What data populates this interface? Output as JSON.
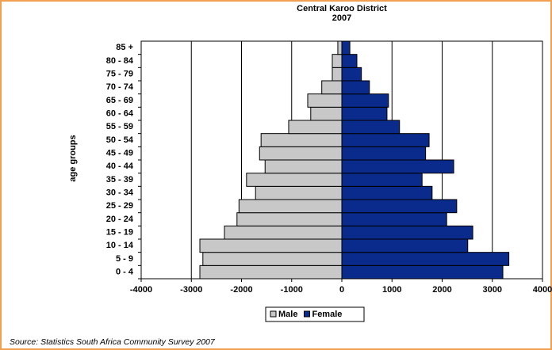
{
  "chart_data": {
    "type": "pyramid",
    "title": "Central Karoo District",
    "subtitle": "2007",
    "ylabel": "age groups",
    "source": "Source: Statistics South Africa Community Survey 2007",
    "categories": [
      "0 - 4",
      "5 - 9",
      "10 - 14",
      "15 - 19",
      "20 - 24",
      "25 - 29",
      "30 - 34",
      "35 - 39",
      "40 - 44",
      "45 - 49",
      "50 - 54",
      "55 - 59",
      "60 - 64",
      "65 - 69",
      "70 - 74",
      "75 - 79",
      "80 - 84",
      "85 +"
    ],
    "series": [
      {
        "name": "Male",
        "color": "#c8c8c8",
        "values": [
          -2830,
          -2770,
          -2830,
          -2340,
          -2090,
          -2050,
          -1720,
          -1900,
          -1530,
          -1640,
          -1610,
          -1060,
          -620,
          -680,
          -400,
          -190,
          -190,
          -80
        ]
      },
      {
        "name": "Female",
        "color": "#0a2a8c",
        "values": [
          3210,
          3330,
          2510,
          2610,
          2090,
          2290,
          1800,
          1600,
          2230,
          1670,
          1740,
          1150,
          900,
          930,
          550,
          390,
          300,
          160
        ]
      }
    ],
    "xlim": [
      -4000,
      4000
    ],
    "xticks": [
      -4000,
      -3000,
      -2000,
      -1000,
      0,
      1000,
      2000,
      3000,
      4000
    ],
    "grid": true,
    "legend": "bottom"
  }
}
